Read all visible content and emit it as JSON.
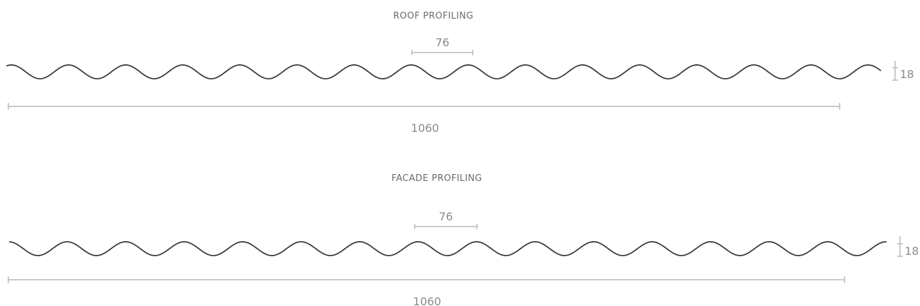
{
  "roof": {
    "title": "ROOF PROFILING",
    "pitch_label": "76",
    "height_label": "18",
    "width_label": "1060"
  },
  "facade": {
    "title": "FACADE PROFILING",
    "pitch_label": "76",
    "height_label": "18",
    "width_label": "1060"
  },
  "colors": {
    "wave": "#3a3a3a",
    "dimension": "#b9b9b9",
    "label": "#8a8a8a",
    "title": "#6b6b6b"
  }
}
